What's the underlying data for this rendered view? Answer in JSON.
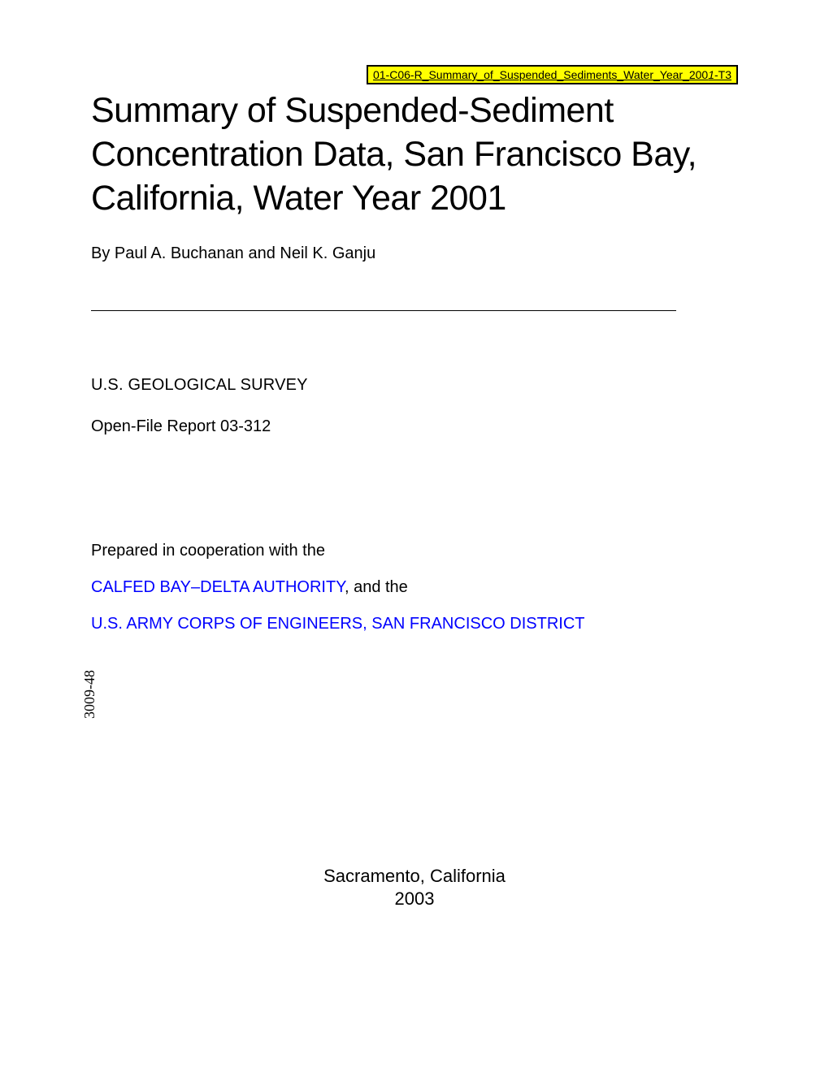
{
  "doc_id": {
    "main": "01-C06-R_Summary_of_Suspended_Sediments_Water_Year_200",
    "italic": "1",
    "suffix": "-T3"
  },
  "title": "Summary of Suspended-Sediment Concentration Data, San Francisco Bay, California, Water Year 2001",
  "authors_by": "By ",
  "authors_names": "Paul A. Buchanan and Neil K. Ganju",
  "agency": "U.S. GEOLOGICAL SURVEY",
  "report_num": "Open-File Report 03-312",
  "coop_intro": "Prepared in cooperation with the",
  "coop1_link": "CALFED BAY–DELTA AUTHORITY",
  "coop1_suffix": ", and the",
  "coop2_link": "U.S. ARMY CORPS OF ENGINEERS, SAN FRANCISCO DISTRICT",
  "vertical_num": "3009-48",
  "footer_location": "Sacramento, California",
  "footer_year": "2003",
  "colors": {
    "highlight_bg": "#ffff00",
    "link_color": "#0000ff",
    "text_color": "#000000",
    "background": "#ffffff"
  }
}
